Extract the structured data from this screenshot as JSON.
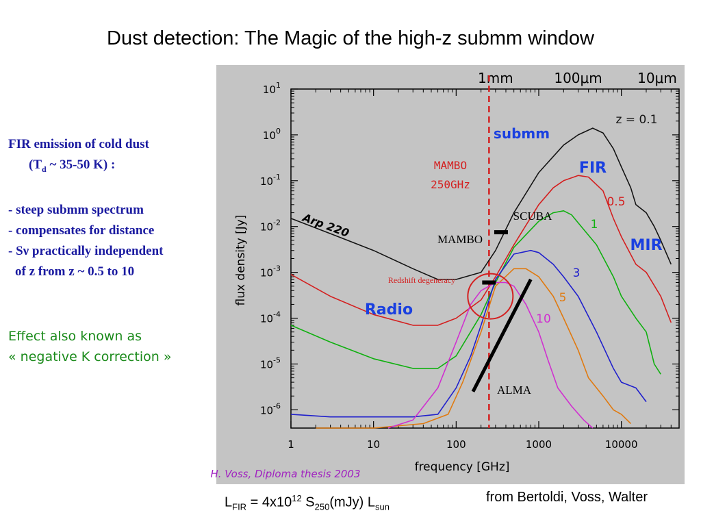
{
  "slide": {
    "title": "Dust detection: The Magic of the high-z submm window",
    "bullets": {
      "line1": "FIR emission of cold dust",
      "line2_pre": "(T",
      "line2_sub": "d",
      "line2_post": " ~ 35-50 K) :",
      "line3": "- steep submm spectrum",
      "line4": "- compensates for distance",
      "line5_pre": "- S",
      "line5_nu": "ν",
      "line5_post": "  practically independent",
      "line6": "of z from z ~ 0.5 to 10"
    },
    "effect": {
      "line1": "Effect also known as",
      "line2": "« negative K correction »"
    },
    "formula": {
      "l": "L",
      "l_sub": "FIR",
      "mid": " = 4x10",
      "exp": "12",
      "s": "  S",
      "s_sub": "250",
      "unit": "(mJy) L",
      "unit_sub": "sun"
    },
    "credit": "from Bertoldi, Voss, Walter"
  },
  "chart_data": {
    "type": "line",
    "xlabel": "frequency [GHz]",
    "ylabel": "flux density [Jy]",
    "xscale": "log",
    "yscale": "log",
    "xlim": [
      1,
      50000
    ],
    "ylim": [
      4e-07,
      10
    ],
    "x_ticks": [
      1,
      10,
      100,
      1000,
      10000
    ],
    "x_tick_labels": [
      "1",
      "10",
      "100",
      "1000",
      "10000"
    ],
    "y_ticks": [
      1e-06,
      1e-05,
      0.0001,
      0.001,
      0.01,
      0.1,
      1,
      10
    ],
    "y_tick_mantissa": "10",
    "y_tick_exponents": [
      "-6",
      "-5",
      "-4",
      "-3",
      "-2",
      "-1",
      "0",
      "1"
    ],
    "top_axis_labels": [
      {
        "text": "1mm",
        "x": 300
      },
      {
        "text": "100μm",
        "x": 3000
      },
      {
        "text": "10μm",
        "x": 30000
      }
    ],
    "reference_line": {
      "x": 250,
      "color": "#d42020"
    },
    "series": [
      {
        "name": "z = 0.1",
        "color": "#141414",
        "x": [
          1,
          3,
          10,
          30,
          60,
          100,
          200,
          300,
          500,
          1000,
          2000,
          3000,
          4500,
          6000,
          8000,
          10000,
          13000,
          15000,
          20000,
          25000,
          30000,
          40000
        ],
        "y": [
          0.015,
          0.007,
          0.003,
          0.0012,
          0.0007,
          0.0007,
          0.001,
          0.003,
          0.02,
          0.15,
          0.6,
          1.0,
          1.4,
          1.1,
          0.5,
          0.2,
          0.07,
          0.03,
          0.02,
          0.01,
          0.005,
          0.0015
        ]
      },
      {
        "name": "0.5",
        "color": "#d42020",
        "x": [
          1,
          3,
          10,
          30,
          60,
          100,
          200,
          300,
          500,
          1000,
          1500,
          2000,
          3000,
          4000,
          6000,
          8000,
          10000,
          15000,
          20000,
          30000,
          40000
        ],
        "y": [
          0.0009,
          0.0003,
          0.00012,
          7e-05,
          7e-05,
          0.0001,
          0.00025,
          0.0008,
          0.004,
          0.03,
          0.07,
          0.1,
          0.13,
          0.12,
          0.06,
          0.015,
          0.006,
          0.0015,
          0.001,
          0.0003,
          8e-05
        ]
      },
      {
        "name": "1",
        "color": "#10b010",
        "x": [
          1,
          3,
          10,
          30,
          60,
          100,
          200,
          300,
          500,
          1000,
          1500,
          2000,
          2500,
          3000,
          5000,
          8000,
          10000,
          15000,
          20000,
          25000,
          30000
        ],
        "y": [
          7e-05,
          3e-05,
          1.3e-05,
          8e-06,
          8e-06,
          1.5e-05,
          0.00012,
          0.0006,
          0.0035,
          0.013,
          0.02,
          0.022,
          0.018,
          0.012,
          0.004,
          0.0008,
          0.0003,
          0.0001,
          5e-05,
          1e-05,
          6e-06
        ]
      },
      {
        "name": "3",
        "color": "#2020cc",
        "x": [
          1,
          3,
          10,
          30,
          60,
          100,
          150,
          200,
          300,
          500,
          800,
          1000,
          1500,
          2000,
          3000,
          5000,
          8000,
          10000,
          15000,
          20000
        ],
        "y": [
          8e-07,
          7e-07,
          7e-07,
          7e-07,
          8e-07,
          3e-06,
          1.5e-05,
          7e-05,
          0.0007,
          0.0025,
          0.003,
          0.0027,
          0.0015,
          0.0008,
          0.0003,
          5e-05,
          8e-06,
          4e-06,
          3e-06,
          1.5e-06
        ]
      },
      {
        "name": "5",
        "color": "#e07a10",
        "x": [
          2,
          10,
          40,
          80,
          120,
          200,
          300,
          500,
          700,
          1000,
          1500,
          2000,
          3000,
          4000,
          6000,
          8000,
          10000,
          13000
        ],
        "y": [
          4e-07,
          4e-07,
          5e-07,
          8e-07,
          4e-06,
          5e-05,
          0.0005,
          0.0012,
          0.0012,
          0.0008,
          0.0003,
          0.0001,
          2e-05,
          5e-06,
          2e-06,
          1e-06,
          8e-07,
          5e-07
        ]
      },
      {
        "name": "10",
        "color": "#d030d0",
        "x": [
          15,
          30,
          60,
          100,
          150,
          200,
          300,
          400,
          500,
          700,
          1000,
          1300,
          1700,
          2500,
          3500,
          4500
        ],
        "y": [
          4e-07,
          6e-07,
          3e-06,
          3e-05,
          0.0002,
          0.0004,
          0.0006,
          0.0006,
          0.0005,
          0.0002,
          5e-05,
          1.2e-05,
          3e-06,
          1.2e-06,
          6e-07,
          4e-07
        ]
      }
    ],
    "annotations": {
      "arp": "Arp 220",
      "submm": "submm",
      "fir": "FIR",
      "mir": "MIR",
      "radio": "Radio",
      "mambo_red": "MAMBO",
      "ghz": "250GHz",
      "mambo": "MAMBO",
      "scuba": "SCUBA",
      "alma": "ALMA",
      "redshift": "Redshift degeneracy",
      "thesis": "H. Voss, Diploma thesis 2003"
    },
    "sensitivity_marks": [
      {
        "name": "MAMBO",
        "x": 250,
        "y": 0.0006
      },
      {
        "name": "SCUBA",
        "x": 350,
        "y": 0.0075
      }
    ],
    "alma_line": {
      "x": [
        160,
        800
      ],
      "y": [
        2.5e-06,
        0.0007
      ]
    }
  }
}
